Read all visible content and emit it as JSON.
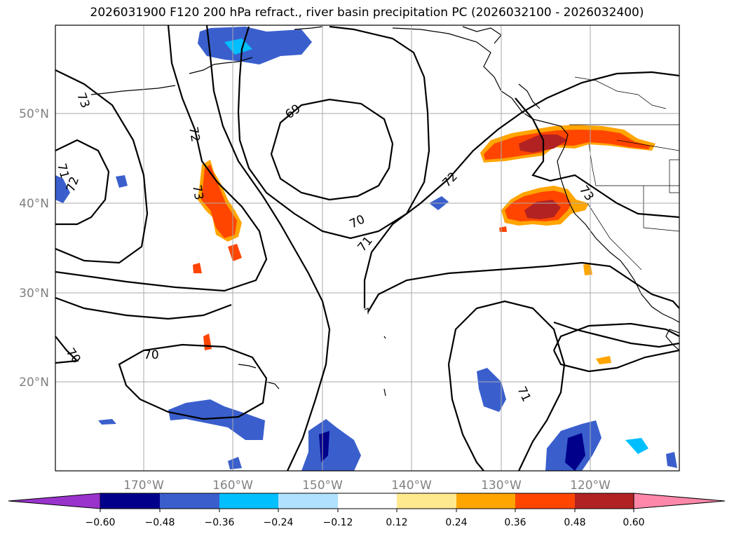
{
  "title": "2026031900 F120 200 hPa refract., river basin precipitation PC (2026032100 - 2026032400)",
  "map": {
    "lat_labels": [
      "50°N",
      "40°N",
      "30°N",
      "20°N"
    ],
    "lon_labels": [
      "170°W",
      "160°W",
      "150°W",
      "140°W",
      "130°W",
      "120°W"
    ],
    "contour_labels": [
      {
        "text": "69"
      },
      {
        "text": "70"
      },
      {
        "text": "71"
      },
      {
        "text": "72"
      },
      {
        "text": "70"
      },
      {
        "text": "71"
      },
      {
        "text": "72"
      },
      {
        "text": "73"
      },
      {
        "text": "73"
      },
      {
        "text": "71"
      },
      {
        "text": "70"
      },
      {
        "text": "73"
      },
      {
        "text": "72"
      }
    ]
  },
  "colorbar": {
    "ticks": [
      "−0.60",
      "−0.48",
      "−0.36",
      "−0.24",
      "−0.12",
      "0.12",
      "0.24",
      "0.36",
      "0.48",
      "0.60"
    ],
    "colors": [
      "#9933cc",
      "#00008b",
      "#3a5fcd",
      "#00bfff",
      "#b0e2ff",
      "#ffffff",
      "#ffe98f",
      "#ffa500",
      "#ff4500",
      "#b22222",
      "#ff88aa"
    ]
  },
  "colors": {
    "ocean": "#ffffff",
    "contour": "#000000",
    "grid": "#aaaaaa"
  }
}
